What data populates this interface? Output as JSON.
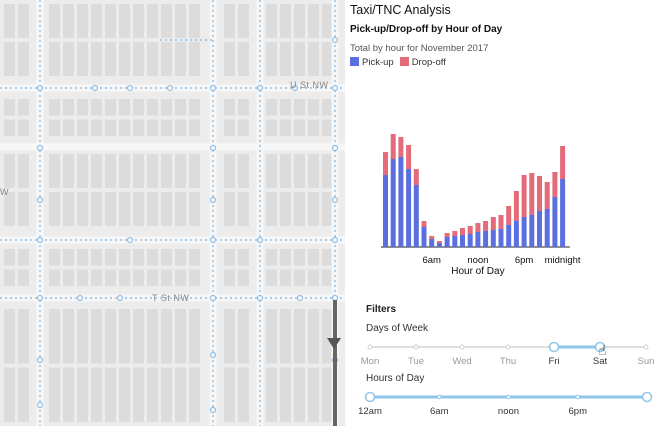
{
  "map": {
    "street_labels": [
      "U St NW",
      "T St NW",
      "W"
    ],
    "colors": {
      "background": "#ececec",
      "block": "#dcdcdc",
      "route": "#8fbde6"
    }
  },
  "panel": {
    "title": "Taxi/TNC Analysis",
    "subtitle": "Pick-up/Drop-off by Hour of Day",
    "description": "Total by hour for November 2017",
    "legend": [
      {
        "label": "Pick-up",
        "color": "#5b6fe0"
      },
      {
        "label": "Drop-off",
        "color": "#e36b7a"
      }
    ]
  },
  "chart_data": {
    "type": "bar",
    "stacked": true,
    "xlabel": "Hour of Day",
    "tick_labels": [
      {
        "hour": 6,
        "label": "6am"
      },
      {
        "hour": 12,
        "label": "noon"
      },
      {
        "hour": 18,
        "label": "6pm"
      },
      {
        "hour": 23,
        "label": "midnight"
      }
    ],
    "categories": [
      0,
      1,
      2,
      3,
      4,
      5,
      6,
      7,
      8,
      9,
      10,
      11,
      12,
      13,
      14,
      15,
      16,
      17,
      18,
      19,
      20,
      21,
      22,
      23
    ],
    "series": [
      {
        "name": "Pick-up",
        "color": "#5b6fe0",
        "values": [
          72,
          88,
          90,
          78,
          62,
          20,
          8,
          4,
          10,
          11,
          12,
          13,
          15,
          16,
          17,
          18,
          22,
          26,
          30,
          32,
          36,
          38,
          50,
          68
        ]
      },
      {
        "name": "Drop-off",
        "color": "#e36b7a",
        "values": [
          23,
          25,
          20,
          24,
          16,
          6,
          3,
          2,
          4,
          5,
          7,
          8,
          9,
          10,
          13,
          14,
          19,
          30,
          42,
          42,
          35,
          27,
          25,
          33
        ]
      }
    ],
    "ylim": [
      0,
      130
    ]
  },
  "filters": {
    "title": "Filters",
    "days_label": "Days of Week",
    "days": [
      "Mon",
      "Tue",
      "Wed",
      "Thu",
      "Fri",
      "Sat",
      "Sun"
    ],
    "days_selected": [
      "Fri",
      "Sat"
    ],
    "hours_label": "Hours of Day",
    "hours_ticks": [
      "12am",
      "6am",
      "noon",
      "6pm"
    ],
    "hours_range": [
      0,
      24
    ]
  }
}
